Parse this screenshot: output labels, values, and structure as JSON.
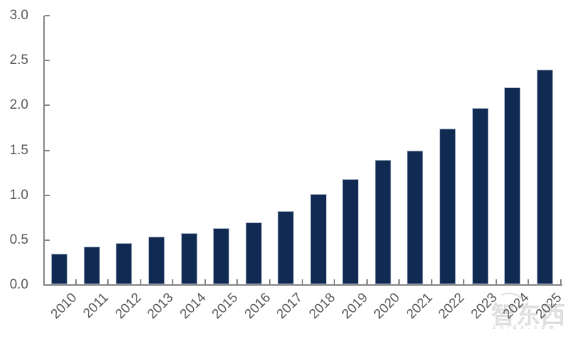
{
  "chart_data": {
    "type": "bar",
    "title": "",
    "categories": [
      "2010",
      "2011",
      "2012",
      "2013",
      "2014",
      "2015",
      "2016",
      "2017",
      "2018",
      "2019",
      "2020",
      "2021",
      "2022",
      "2023",
      "2024",
      "2025"
    ],
    "values": [
      0.35,
      0.43,
      0.47,
      0.54,
      0.58,
      0.63,
      0.7,
      0.82,
      1.01,
      1.18,
      1.39,
      1.5,
      1.74,
      1.97,
      2.2,
      2.4
    ],
    "xlabel": "",
    "ylabel": "",
    "ylim": [
      0,
      3.0
    ],
    "yticks": [
      "0.0",
      "0.5",
      "1.0",
      "1.5",
      "2.0",
      "2.5",
      "3.0"
    ],
    "grid": false,
    "legend_position": "none",
    "bar_color": "#112A52",
    "bar_border_color": "#A7B4C7",
    "axis_color": "#848484",
    "tick_label_color": "#595959"
  },
  "watermark": {
    "text": "智东西",
    "subtext": "z h i d x . c o m"
  }
}
